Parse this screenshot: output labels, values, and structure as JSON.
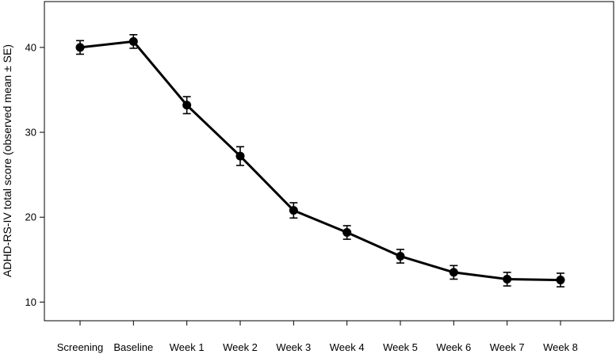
{
  "chart_data": {
    "type": "line",
    "title": "",
    "xlabel": "",
    "ylabel": "ADHD-RS-IV total score (observed mean ± SE)",
    "categories": [
      "Screening",
      "Baseline",
      "Week 1",
      "Week 2",
      "Week 3",
      "Week 4",
      "Week 5",
      "Week 6",
      "Week 7",
      "Week 8"
    ],
    "series": [
      {
        "values": [
          40.0,
          40.7,
          33.2,
          27.2,
          20.8,
          18.2,
          15.4,
          13.5,
          12.7,
          12.6
        ],
        "se": [
          0.8,
          0.8,
          1.0,
          1.1,
          0.9,
          0.8,
          0.8,
          0.8,
          0.8,
          0.8
        ]
      }
    ],
    "yticks": [
      10,
      20,
      30,
      40
    ],
    "ylim": [
      7.8,
      45.4
    ],
    "grid": false,
    "colors": {
      "line": "#000000",
      "marker": "#000000",
      "axis": "#000000"
    }
  }
}
